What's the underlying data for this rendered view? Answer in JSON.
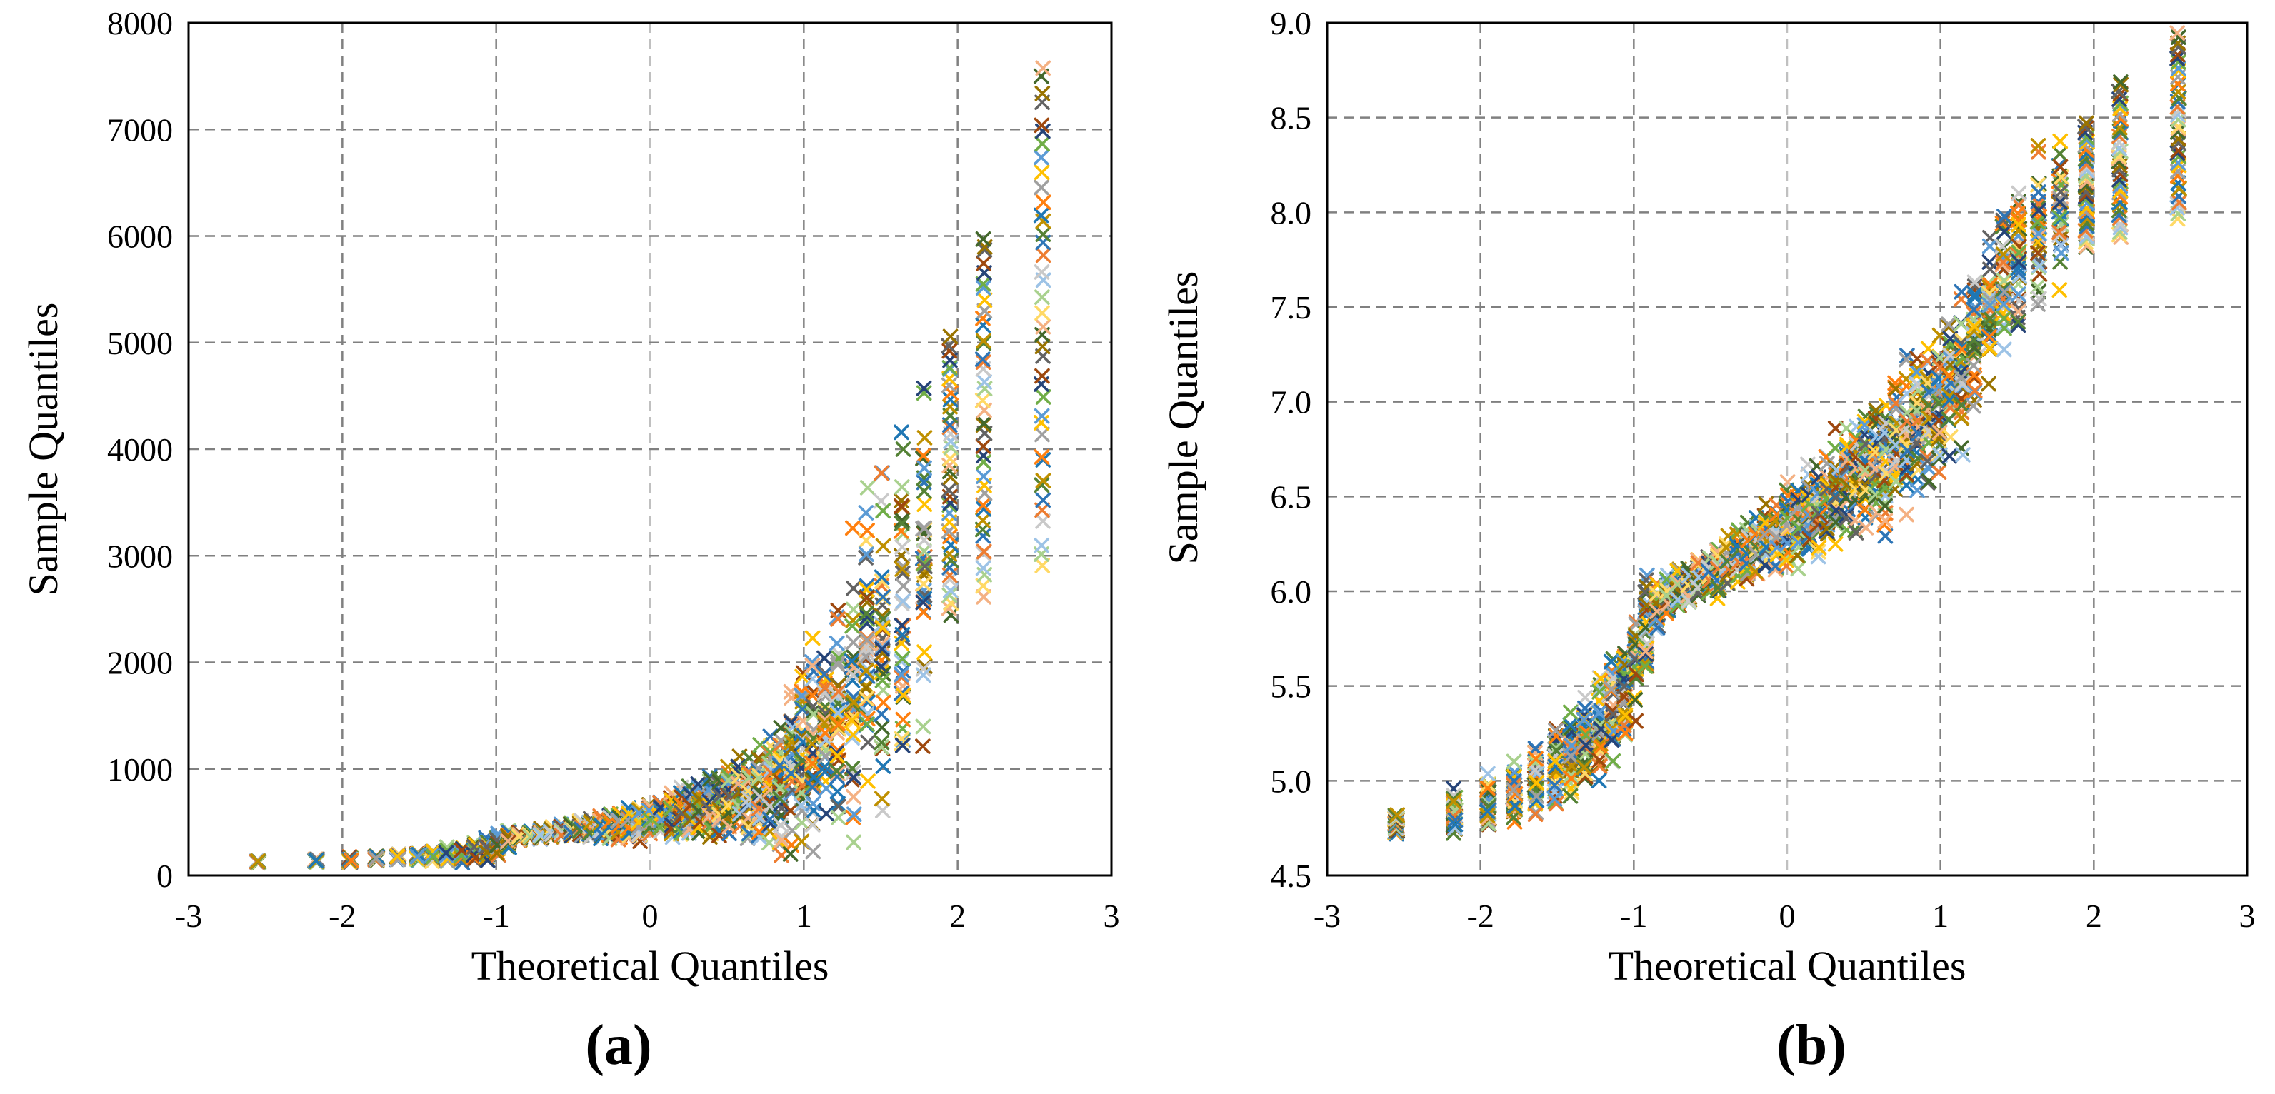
{
  "colors": {
    "series": [
      "#1f77b4",
      "#ff7f0e",
      "#a0a0a0",
      "#ffc000",
      "#5b9bd5",
      "#70ad47",
      "#264478",
      "#9e480e",
      "#636363",
      "#997300",
      "#43682b",
      "#f4b183",
      "#ffd966",
      "#a9d18e",
      "#9dc3e6",
      "#c9c9c9",
      "#ed7d31",
      "#2e75b6",
      "#548235",
      "#bf9000"
    ],
    "frame": "#000000",
    "grid": "#808080",
    "grid_zero": "#c0c0c0"
  },
  "chart_data": [
    {
      "type": "scatter",
      "panel_label": "(a)",
      "title": "",
      "xlabel": "Theoretical Quantiles",
      "ylabel": "Sample Quantiles",
      "xlim": [
        -3,
        3
      ],
      "ylim": [
        0,
        8000
      ],
      "xticks": [
        "-3",
        "-2",
        "-1",
        "0",
        "1",
        "2",
        "3"
      ],
      "yticks": [
        "0",
        "1000",
        "2000",
        "3000",
        "4000",
        "5000",
        "6000",
        "7000",
        "8000"
      ],
      "grid": true,
      "legend": "none",
      "marker": "x",
      "series_count": 40,
      "x": [
        -2.55,
        -2.17,
        -1.95,
        -1.78,
        -1.64,
        -1.51,
        -1.41,
        -1.32,
        -1.22,
        -1.14,
        -1.06,
        -0.99,
        -0.92,
        -0.85,
        -0.78,
        -0.71,
        -0.64,
        -0.58,
        -0.51,
        -0.45,
        -0.39,
        -0.32,
        -0.26,
        -0.2,
        -0.14,
        -0.07,
        0.0,
        0.07,
        0.14,
        0.2,
        0.26,
        0.32,
        0.39,
        0.45,
        0.51,
        0.58,
        0.64,
        0.71,
        0.78,
        0.85,
        0.92,
        0.99,
        1.06,
        1.14,
        1.22,
        1.32,
        1.41,
        1.51,
        1.64,
        1.78,
        1.95,
        2.17,
        2.55
      ],
      "median_y": [
        130,
        140,
        150,
        160,
        170,
        180,
        190,
        200,
        210,
        230,
        250,
        280,
        340,
        370,
        380,
        390,
        400,
        410,
        420,
        430,
        440,
        450,
        460,
        470,
        480,
        490,
        520,
        540,
        560,
        580,
        600,
        630,
        660,
        680,
        710,
        740,
        760,
        800,
        860,
        900,
        980,
        1050,
        1200,
        1400,
        1600,
        1800,
        2000,
        2300,
        2700,
        3000,
        3400,
        3800,
        4500
      ],
      "spread_y": [
        10,
        10,
        15,
        20,
        25,
        30,
        40,
        50,
        60,
        70,
        80,
        80,
        60,
        30,
        30,
        40,
        40,
        45,
        50,
        60,
        70,
        80,
        90,
        100,
        110,
        120,
        130,
        140,
        150,
        160,
        170,
        180,
        200,
        220,
        240,
        260,
        300,
        340,
        380,
        450,
        500,
        600,
        700,
        800,
        900,
        1000,
        1100,
        1200,
        1300,
        1400,
        1500,
        1600,
        1900
      ],
      "min_y": [
        null,
        null,
        null,
        null,
        null,
        null,
        null,
        null,
        null,
        null,
        null,
        null,
        null,
        null,
        null,
        null,
        null,
        null,
        null,
        null,
        null,
        null,
        null,
        null,
        null,
        null,
        null,
        null,
        null,
        null,
        null,
        null,
        null,
        null,
        null,
        null,
        null,
        null,
        null,
        null,
        null,
        null,
        null,
        null,
        null,
        null,
        null,
        null,
        null,
        null,
        2400,
        2600,
        2850
      ],
      "max_y": [
        null,
        null,
        null,
        null,
        null,
        null,
        null,
        null,
        null,
        null,
        null,
        null,
        null,
        null,
        null,
        null,
        null,
        null,
        null,
        null,
        null,
        null,
        null,
        null,
        null,
        null,
        null,
        null,
        null,
        null,
        null,
        null,
        null,
        null,
        null,
        null,
        null,
        null,
        null,
        null,
        null,
        null,
        null,
        null,
        null,
        null,
        null,
        null,
        null,
        null,
        5100,
        6050,
        7620
      ]
    },
    {
      "type": "scatter",
      "panel_label": "(b)",
      "title": "",
      "xlabel": "Theoretical Quantiles",
      "ylabel": "Sample Quantiles",
      "xlim": [
        -3,
        3
      ],
      "ylim": [
        4.5,
        9.0
      ],
      "xticks": [
        "-3",
        "-2",
        "-1",
        "0",
        "1",
        "2",
        "3"
      ],
      "yticks": [
        "4.5",
        "5.0",
        "5.5",
        "6.0",
        "6.5",
        "7.0",
        "7.5",
        "8.0",
        "8.5",
        "9.0"
      ],
      "grid": true,
      "legend": "none",
      "marker": "x",
      "series_count": 40,
      "x": [
        -2.55,
        -2.17,
        -1.95,
        -1.78,
        -1.64,
        -1.51,
        -1.41,
        -1.32,
        -1.22,
        -1.14,
        -1.06,
        -0.99,
        -0.92,
        -0.85,
        -0.78,
        -0.71,
        -0.64,
        -0.58,
        -0.51,
        -0.45,
        -0.39,
        -0.32,
        -0.26,
        -0.2,
        -0.14,
        -0.07,
        0.0,
        0.07,
        0.14,
        0.2,
        0.26,
        0.32,
        0.39,
        0.45,
        0.51,
        0.58,
        0.64,
        0.71,
        0.78,
        0.85,
        0.92,
        0.99,
        1.06,
        1.14,
        1.22,
        1.32,
        1.41,
        1.51,
        1.64,
        1.78,
        1.95,
        2.17,
        2.55
      ],
      "median_y": [
        4.78,
        4.85,
        4.9,
        4.95,
        5.0,
        5.05,
        5.12,
        5.2,
        5.3,
        5.4,
        5.5,
        5.65,
        5.8,
        5.92,
        5.98,
        6.0,
        6.03,
        6.06,
        6.09,
        6.12,
        6.15,
        6.18,
        6.21,
        6.24,
        6.27,
        6.3,
        6.33,
        6.37,
        6.4,
        6.44,
        6.48,
        6.52,
        6.56,
        6.6,
        6.64,
        6.68,
        6.72,
        6.76,
        6.82,
        6.88,
        6.94,
        7.0,
        7.1,
        7.2,
        7.35,
        7.5,
        7.6,
        7.75,
        7.9,
        8.0,
        8.1,
        8.2,
        8.35
      ],
      "spread_y": [
        0.05,
        0.1,
        0.12,
        0.12,
        0.14,
        0.16,
        0.18,
        0.2,
        0.22,
        0.22,
        0.2,
        0.2,
        0.2,
        0.1,
        0.08,
        0.08,
        0.08,
        0.08,
        0.09,
        0.1,
        0.1,
        0.11,
        0.12,
        0.12,
        0.13,
        0.14,
        0.15,
        0.16,
        0.17,
        0.18,
        0.19,
        0.2,
        0.21,
        0.22,
        0.23,
        0.24,
        0.25,
        0.26,
        0.27,
        0.28,
        0.29,
        0.3,
        0.3,
        0.3,
        0.3,
        0.3,
        0.3,
        0.3,
        0.3,
        0.3,
        0.3,
        0.3,
        0.3
      ],
      "min_y": [
        4.72,
        null,
        null,
        null,
        null,
        null,
        null,
        null,
        null,
        null,
        null,
        null,
        null,
        null,
        null,
        null,
        null,
        null,
        null,
        null,
        null,
        null,
        null,
        null,
        null,
        null,
        null,
        null,
        null,
        null,
        null,
        null,
        null,
        null,
        null,
        null,
        null,
        null,
        null,
        null,
        null,
        null,
        null,
        null,
        null,
        null,
        null,
        null,
        null,
        null,
        7.8,
        7.85,
        7.95
      ],
      "max_y": [
        4.82,
        null,
        null,
        null,
        null,
        null,
        null,
        null,
        null,
        null,
        null,
        null,
        null,
        null,
        null,
        null,
        null,
        null,
        null,
        null,
        null,
        null,
        null,
        null,
        null,
        null,
        null,
        null,
        null,
        null,
        null,
        null,
        null,
        null,
        null,
        null,
        null,
        null,
        null,
        null,
        null,
        null,
        null,
        null,
        null,
        null,
        null,
        null,
        null,
        null,
        8.48,
        8.7,
        8.95
      ]
    }
  ]
}
